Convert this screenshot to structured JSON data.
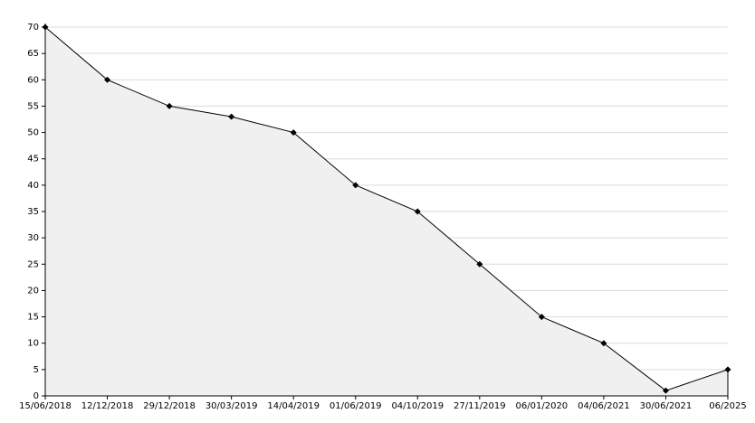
{
  "chart_data": {
    "type": "area",
    "categories": [
      "15/06/2018",
      "12/12/2018",
      "29/12/2018",
      "30/03/2019",
      "14/04/2019",
      "01/06/2019",
      "04/10/2019",
      "27/11/2019",
      "06/01/2020",
      "04/06/2021",
      "30/06/2021",
      "06/2025"
    ],
    "values": [
      70,
      60,
      55,
      53,
      50,
      40,
      35,
      25,
      15,
      10,
      1,
      5
    ],
    "color": "#000000",
    "fill": "#f0f0f0",
    "ylim": [
      0,
      70
    ],
    "yticks": [
      0,
      5,
      10,
      15,
      20,
      25,
      30,
      35,
      40,
      45,
      50,
      55,
      60,
      65,
      70
    ],
    "grid": true
  }
}
